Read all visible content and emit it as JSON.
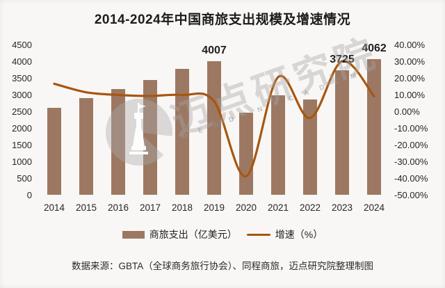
{
  "title": "2014-2024年中国商旅支出规模及增速情况",
  "footer": {
    "source_note": "数据来源：GBTA（全球商务旅行协会）、同程商旅，迈点研究院整理制图"
  },
  "legend": {
    "items": [
      {
        "type": "bar",
        "label": "商旅支出（亿美元）"
      },
      {
        "type": "line",
        "label": "增速（%）"
      }
    ]
  },
  "watermark": {
    "brand_cn": "迈点研究院",
    "brand_en": "M E A D I N  A C A D E M Y"
  },
  "colors": {
    "bar": "#9c7863",
    "line": "#a8560f",
    "title_text": "#1c1c1c",
    "axis_text": "#262626",
    "background": "#f8f7f5",
    "watermark": "#aaaaaa"
  },
  "chart_data": {
    "type": "bar+line combo",
    "title": "2014-2024年中国商旅支出规模及增速情况",
    "categories": [
      "2014",
      "2015",
      "2016",
      "2017",
      "2018",
      "2019",
      "2020",
      "2021",
      "2022",
      "2023",
      "2024"
    ],
    "series": [
      {
        "name": "商旅支出（亿美元）",
        "type": "bar",
        "axis": "left",
        "values": [
          2600,
          2900,
          3160,
          3430,
          3780,
          4007,
          2450,
          2980,
          2860,
          3725,
          4062
        ]
      },
      {
        "name": "增速（%）",
        "type": "line",
        "axis": "right",
        "values": [
          16.5,
          11.4,
          9.8,
          9.2,
          9.8,
          5.9,
          -38.9,
          20.5,
          -4.0,
          30.0,
          9.0
        ]
      }
    ],
    "data_labels": [
      {
        "category": "2019",
        "text": "4007"
      },
      {
        "category": "2023",
        "text": "3725"
      },
      {
        "category": "2024",
        "text": "4062"
      }
    ],
    "left_axis": {
      "min": 0,
      "max": 4500,
      "step": 500,
      "tick_labels": [
        "4500",
        "4000",
        "3500",
        "3000",
        "2500",
        "2000",
        "1500",
        "1000",
        "500",
        "0"
      ]
    },
    "right_axis": {
      "min": -50,
      "max": 40,
      "step": 10,
      "tick_labels": [
        "40.00%",
        "30.00%",
        "20.00%",
        "10.00%",
        "0.00%",
        "-10.00%",
        "-20.00%",
        "-30.00%",
        "-40.00%",
        "-50.00%"
      ]
    },
    "grid": false,
    "line_smooth": true,
    "legend_position": "bottom"
  }
}
